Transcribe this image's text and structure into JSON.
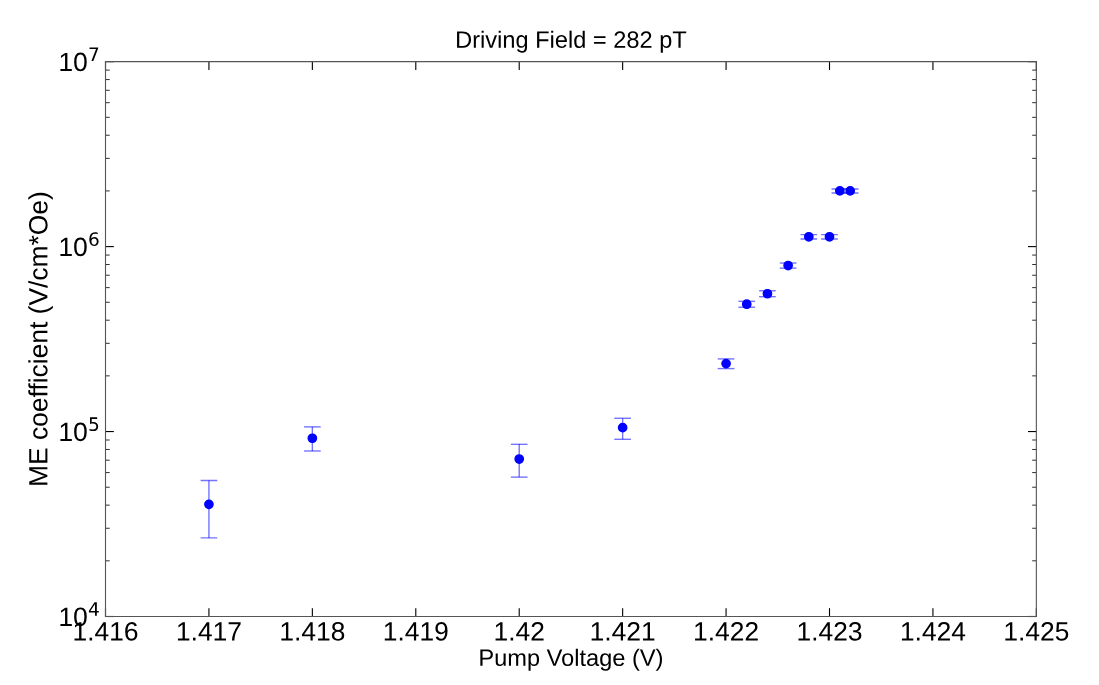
{
  "chart_data": {
    "type": "scatter",
    "title": "Driving Field = 282 pT",
    "xlabel": "Pump Voltage (V)",
    "ylabel": "ME coefficient (V/cm*Oe)",
    "x": [
      1.417,
      1.418,
      1.42,
      1.421,
      1.422,
      1.4222,
      1.4224,
      1.4226,
      1.4228,
      1.423,
      1.4231,
      1.4232
    ],
    "series": [
      {
        "color": "#0000ff",
        "values": [
          40400,
          92000,
          71000,
          105000,
          233000,
          488000,
          556000,
          790000,
          1130000,
          1130000,
          2000000,
          2000000
        ],
        "errors": [
          [
            26600,
            54400
          ],
          [
            78500,
            106000
          ],
          [
            56700,
            85300
          ],
          [
            90800,
            118000
          ],
          [
            219000,
            247000
          ],
          [
            470000,
            506000
          ],
          [
            536000,
            577000
          ],
          [
            765000,
            815000
          ],
          [
            1100000,
            1160000
          ],
          [
            1100000,
            1160000
          ],
          [
            1950000,
            2050000
          ],
          [
            1950000,
            2050000
          ]
        ]
      }
    ],
    "marker": "circle",
    "log": "y",
    "grid": false,
    "xlim": [
      1.416,
      1.425
    ],
    "xticks": [
      1.416,
      1.417,
      1.418,
      1.419,
      {
        "value": 1.42,
        "label": "1.42"
      },
      1.421,
      1.422,
      1.423,
      1.424,
      1.425
    ],
    "ylim": [
      10000,
      10000000
    ],
    "yticks": [
      {
        "value": 10000,
        "label": "10$^{4}$"
      },
      {
        "value": 100000,
        "label": "10$^{5}$"
      },
      {
        "value": 1000000,
        "label": "10$^{6}$"
      },
      {
        "value": 10000000,
        "label": "10$^{7}$"
      }
    ]
  }
}
